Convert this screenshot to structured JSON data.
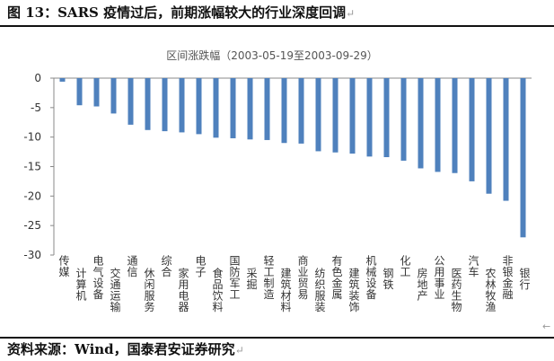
{
  "figure": {
    "title": "图 13：SARS 疫情过后，前期涨幅较大的行业深度回调",
    "source": "资料来源：Wind，国泰君安证券研究",
    "paragraph_mark": "↵",
    "corner_mark": "←"
  },
  "colors": {
    "bar": "#4f81bd",
    "axis": "#888888",
    "text": "#333333"
  },
  "chart_data": {
    "type": "bar",
    "title": "区间涨跌幅（2003-05-19至2003-09-29）",
    "xlabel": "",
    "ylabel": "",
    "ylim": [
      -30,
      0
    ],
    "yticks": [
      0,
      -5,
      -10,
      -15,
      -20,
      -25,
      -30
    ],
    "grid": false,
    "categories": [
      "传媒",
      "计算机",
      "电气设备",
      "交通运输",
      "通信",
      "休闲服务",
      "综合",
      "家用电器",
      "电子",
      "食品饮料",
      "国防军工",
      "采掘",
      "轻工制造",
      "建筑材料",
      "商业贸易",
      "纺织服装",
      "有色金属",
      "建筑装饰",
      "机械设备",
      "钢铁",
      "化工",
      "房地产",
      "公用事业",
      "医药生物",
      "汽车",
      "农林牧渔",
      "非银金融",
      "银行"
    ],
    "values": [
      -0.6,
      -4.6,
      -4.8,
      -6.0,
      -7.9,
      -8.8,
      -9.0,
      -9.2,
      -9.5,
      -10.1,
      -10.2,
      -10.4,
      -10.5,
      -11.0,
      -11.1,
      -12.4,
      -12.6,
      -12.8,
      -13.3,
      -13.4,
      -14.0,
      -15.3,
      -15.9,
      -16.1,
      -17.5,
      -19.6,
      -20.8,
      -27.0
    ]
  }
}
